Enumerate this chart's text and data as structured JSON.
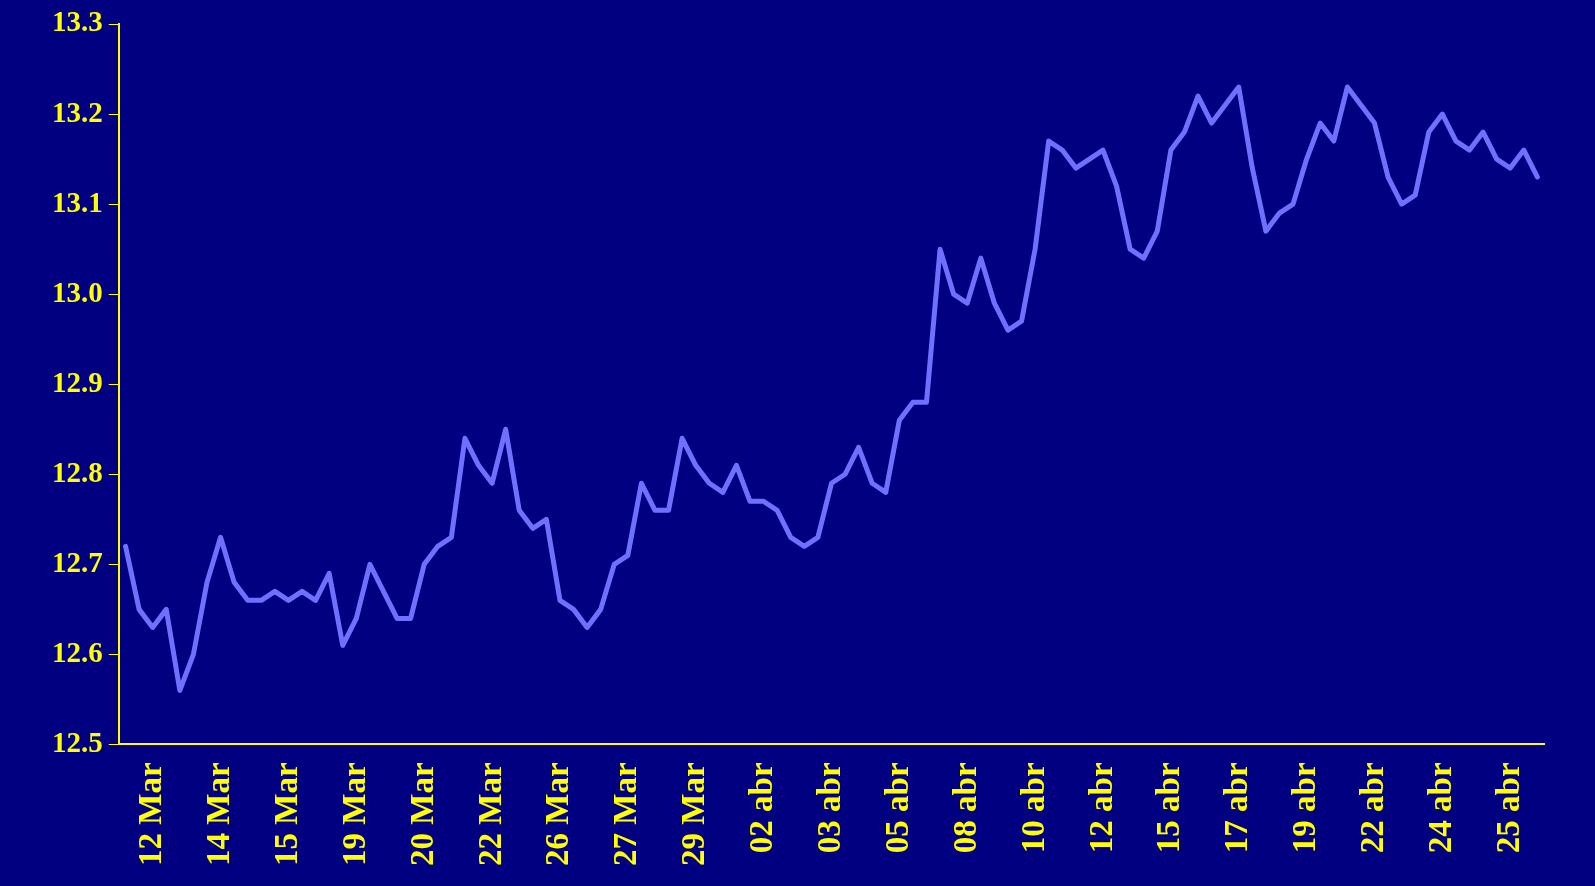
{
  "chart_data": {
    "type": "line",
    "categories": [
      null,
      null,
      "12 Mar",
      null,
      null,
      null,
      null,
      "14 Mar",
      null,
      null,
      null,
      null,
      "15 Mar",
      null,
      null,
      null,
      null,
      "19 Mar",
      null,
      null,
      null,
      null,
      "20 Mar",
      null,
      null,
      null,
      null,
      "22 Mar",
      null,
      null,
      null,
      null,
      "26 Mar",
      null,
      null,
      null,
      null,
      "27 Mar",
      null,
      null,
      null,
      null,
      "29 Mar",
      null,
      null,
      null,
      null,
      "02 abr",
      null,
      null,
      null,
      null,
      "03 abr",
      null,
      null,
      null,
      null,
      "05 abr",
      null,
      null,
      null,
      null,
      "08 abr",
      null,
      null,
      null,
      null,
      "10 abr",
      null,
      null,
      null,
      null,
      "12 abr",
      null,
      null,
      null,
      null,
      "15 abr",
      null,
      null,
      null,
      null,
      "17 abr",
      null,
      null,
      null,
      null,
      "19 abr",
      null,
      null,
      null,
      null,
      "22 abr",
      null,
      null,
      null,
      null,
      "24 abr",
      null,
      null,
      null,
      null,
      "25 abr",
      null,
      null
    ],
    "series": [
      {
        "color": "#7070ff",
        "values": [
          12.72,
          12.65,
          12.63,
          12.65,
          12.56,
          12.6,
          12.68,
          12.73,
          12.68,
          12.66,
          12.66,
          12.67,
          12.66,
          12.67,
          12.66,
          12.69,
          12.61,
          12.64,
          12.7,
          12.67,
          12.64,
          12.64,
          12.7,
          12.72,
          12.73,
          12.84,
          12.81,
          12.79,
          12.85,
          12.76,
          12.74,
          12.75,
          12.66,
          12.65,
          12.63,
          12.65,
          12.7,
          12.71,
          12.79,
          12.76,
          12.76,
          12.84,
          12.81,
          12.79,
          12.78,
          12.81,
          12.77,
          12.77,
          12.76,
          12.73,
          12.72,
          12.73,
          12.79,
          12.8,
          12.83,
          12.79,
          12.78,
          12.86,
          12.88,
          12.88,
          13.05,
          13.0,
          12.99,
          13.04,
          12.99,
          12.96,
          12.97,
          13.05,
          13.17,
          13.16,
          13.14,
          13.15,
          13.16,
          13.12,
          13.05,
          13.04,
          13.07,
          13.16,
          13.18,
          13.22,
          13.19,
          13.21,
          13.23,
          13.14,
          13.07,
          13.09,
          13.1,
          13.15,
          13.19,
          13.17,
          13.23,
          13.21,
          13.19,
          13.13,
          13.1,
          13.11,
          13.18,
          13.2,
          13.17,
          13.16,
          13.18,
          13.15,
          13.14,
          13.16,
          13.13
        ]
      }
    ],
    "ylim": [
      12.5,
      13.3
    ],
    "yticks": [
      12.5,
      12.6,
      12.7,
      12.8,
      12.9,
      {
        "value": 13,
        "label": "13.0"
      },
      13.1,
      13.2,
      13.3
    ],
    "marker": "none",
    "line_style": "solid",
    "legend": false
  }
}
